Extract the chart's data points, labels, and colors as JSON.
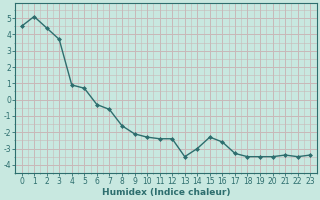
{
  "x": [
    0,
    1,
    2,
    3,
    4,
    5,
    6,
    7,
    8,
    9,
    10,
    11,
    12,
    13,
    14,
    15,
    16,
    17,
    18,
    19,
    20,
    21,
    22,
    23
  ],
  "y": [
    4.5,
    5.1,
    4.4,
    3.7,
    0.9,
    0.7,
    -0.3,
    -0.6,
    -1.6,
    -2.1,
    -2.3,
    -2.4,
    -2.4,
    -3.5,
    -3.0,
    -2.3,
    -2.6,
    -3.3,
    -3.5,
    -3.5,
    -3.5,
    -3.4,
    -3.5,
    -3.4
  ],
  "line_color": "#2d6e6e",
  "marker": "D",
  "marker_size": 2.0,
  "line_width": 1.0,
  "bg_color": "#c8e8e0",
  "grid_color": "#c8b8b8",
  "xlabel": "Humidex (Indice chaleur)",
  "xlim": [
    -0.5,
    23.5
  ],
  "ylim": [
    -4.5,
    5.9
  ],
  "yticks": [
    -4,
    -3,
    -2,
    -1,
    0,
    1,
    2,
    3,
    4,
    5
  ],
  "xticks": [
    0,
    1,
    2,
    3,
    4,
    5,
    6,
    7,
    8,
    9,
    10,
    11,
    12,
    13,
    14,
    15,
    16,
    17,
    18,
    19,
    20,
    21,
    22,
    23
  ],
  "label_fontsize": 6.5,
  "tick_fontsize": 5.5
}
